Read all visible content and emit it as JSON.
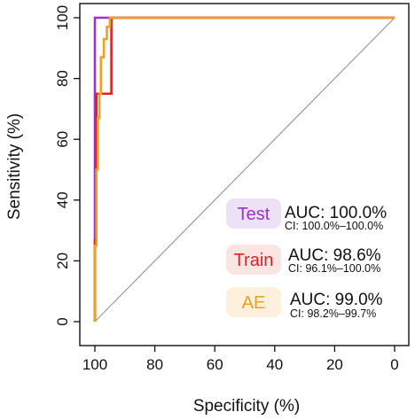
{
  "chart_data": {
    "type": "line",
    "title": "",
    "xlabel": "Specificity (%)",
    "ylabel": "Sensitivity (%)",
    "xlim": [
      100,
      0
    ],
    "ylim": [
      0,
      100
    ],
    "x_axis_reversed": true,
    "x_ticks": [
      "100",
      "80",
      "60",
      "40",
      "20",
      "0"
    ],
    "y_ticks": [
      "0",
      "20",
      "40",
      "60",
      "80",
      "100"
    ],
    "grid": false,
    "reference_line": {
      "from": [
        100,
        0
      ],
      "to": [
        0,
        100
      ],
      "color": "#999999"
    },
    "series": [
      {
        "name": "Test",
        "color": "#9933CC",
        "auc": "AUC: 100.0%",
        "ci": "CI: 100.0%–100.0%",
        "points": [
          [
            100,
            0
          ],
          [
            100,
            75
          ],
          [
            100,
            100
          ],
          [
            0,
            100
          ]
        ]
      },
      {
        "name": "Train",
        "color": "#DD2222",
        "auc": "AUC: 98.6%",
        "ci": "CI: 96.1%–100.0%",
        "points": [
          [
            100,
            0
          ],
          [
            100,
            27
          ],
          [
            99.5,
            27
          ],
          [
            99.5,
            75
          ],
          [
            94.5,
            75
          ],
          [
            94.5,
            100
          ],
          [
            0,
            100
          ]
        ]
      },
      {
        "name": "AE",
        "color": "#F0A020",
        "auc": "AUC: 99.0%",
        "ci": "CI: 98.2%–99.7%",
        "points": [
          [
            100,
            0
          ],
          [
            100,
            25
          ],
          [
            99.5,
            25
          ],
          [
            99.5,
            50
          ],
          [
            99,
            50
          ],
          [
            99,
            67
          ],
          [
            98.5,
            67
          ],
          [
            98.5,
            75
          ],
          [
            98,
            75
          ],
          [
            98,
            87
          ],
          [
            97,
            87
          ],
          [
            97,
            93
          ],
          [
            96,
            93
          ],
          [
            96,
            97
          ],
          [
            95,
            97
          ],
          [
            95,
            100
          ],
          [
            0,
            100
          ]
        ]
      }
    ],
    "legend_position": "bottom-right"
  }
}
